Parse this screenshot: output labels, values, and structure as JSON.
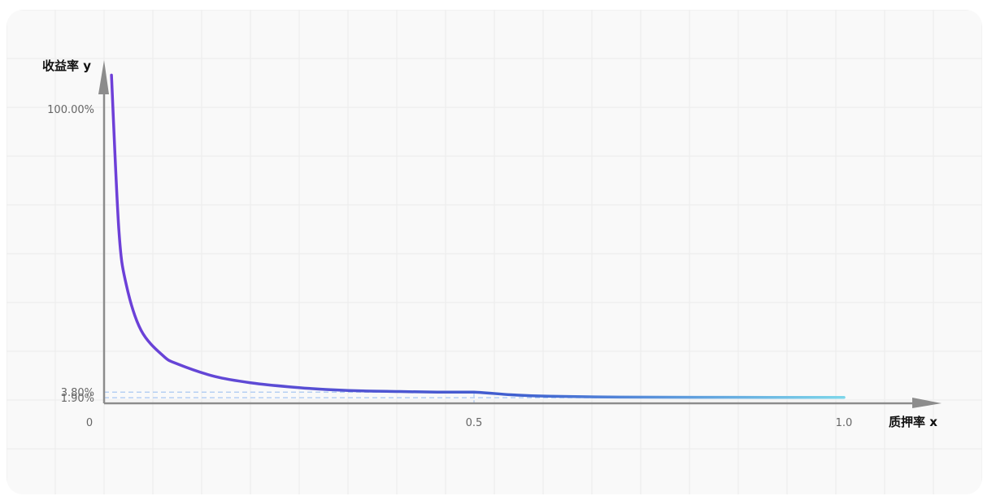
{
  "chart_data": {
    "type": "line",
    "title": "",
    "xlabel": "质押率 x",
    "ylabel": "收益率 y",
    "x_ticks": [
      "0",
      "0.5",
      "1.0"
    ],
    "y_ticks": [
      {
        "label": "100.00%",
        "value": 100
      },
      {
        "label": "3.80%",
        "value": 3.8
      },
      {
        "label": "1.90%",
        "value": 1.9
      }
    ],
    "reference_lines": [
      {
        "axis": "y",
        "value": 3.8,
        "to_x": 0.5
      },
      {
        "axis": "y",
        "value": 1.9,
        "to_x": 1.0
      },
      {
        "axis": "x",
        "value": 0.5
      }
    ],
    "series": [
      {
        "name": "",
        "x": [
          0.01,
          0.02,
          0.03,
          0.05,
          0.08,
          0.1,
          0.15,
          0.2,
          0.25,
          0.3,
          0.35,
          0.4,
          0.45,
          0.5,
          0.55,
          0.6,
          0.7,
          0.8,
          0.9,
          1.0
        ],
        "y": [
          111.5,
          58.9,
          40.3,
          24.8,
          16.1,
          13.3,
          9.1,
          6.9,
          5.6,
          4.7,
          4.2,
          4.0,
          3.8,
          3.8,
          2.9,
          2.4,
          2.1,
          2.05,
          2.0,
          2.0
        ]
      }
    ],
    "grid": true,
    "colors": {
      "line_start": "#6e3fd8",
      "line_mid": "#3f5fcf",
      "line_end": "#7dd6ea",
      "axis": "#8c8c8c",
      "ref": "#a9c7f2"
    }
  }
}
